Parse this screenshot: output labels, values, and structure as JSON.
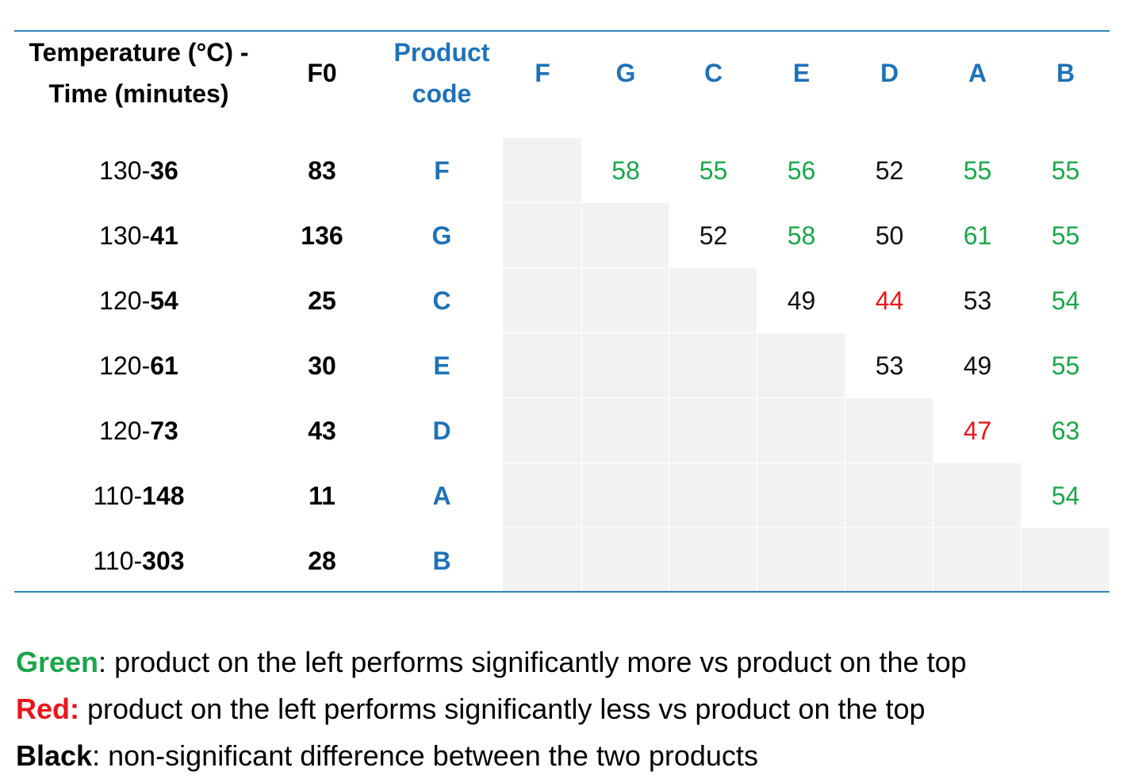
{
  "chart_data": {
    "type": "table",
    "columns": {
      "temp_time": "Temperature (°C) - Time (minutes)",
      "temp_time_line1": "Temperature (°C) -",
      "temp_time_line2": "Time (minutes)",
      "f0": "F0",
      "product_code_line1": "Product",
      "product_code_line2": "code"
    },
    "products": [
      "F",
      "G",
      "C",
      "E",
      "D",
      "A",
      "B"
    ],
    "rows": [
      {
        "temp": "130-",
        "time": "36",
        "f0": "83",
        "code": "F"
      },
      {
        "temp": "130-",
        "time": "41",
        "f0": "136",
        "code": "G"
      },
      {
        "temp": "120-",
        "time": "54",
        "f0": "25",
        "code": "C"
      },
      {
        "temp": "120-",
        "time": "61",
        "f0": "30",
        "code": "E"
      },
      {
        "temp": "120-",
        "time": "73",
        "f0": "43",
        "code": "D"
      },
      {
        "temp": "110-",
        "time": "148",
        "f0": "11",
        "code": "A"
      },
      {
        "temp": "110-",
        "time": "303",
        "f0": "28",
        "code": "B"
      }
    ],
    "matrix": [
      [
        null,
        58,
        55,
        56,
        52,
        55,
        55
      ],
      [
        null,
        null,
        52,
        58,
        50,
        61,
        55
      ],
      [
        null,
        null,
        null,
        49,
        44,
        53,
        54
      ],
      [
        null,
        null,
        null,
        null,
        53,
        49,
        55
      ],
      [
        null,
        null,
        null,
        null,
        null,
        47,
        63
      ],
      [
        null,
        null,
        null,
        null,
        null,
        null,
        54
      ],
      [
        null,
        null,
        null,
        null,
        null,
        null,
        null
      ]
    ],
    "significance": [
      [
        null,
        "more",
        "more",
        "more",
        "ns",
        "more",
        "more"
      ],
      [
        null,
        null,
        "ns",
        "more",
        "ns",
        "more",
        "more"
      ],
      [
        null,
        null,
        null,
        "ns",
        "less",
        "ns",
        "more"
      ],
      [
        null,
        null,
        null,
        null,
        "ns",
        "ns",
        "more"
      ],
      [
        null,
        null,
        null,
        null,
        null,
        "less",
        "more"
      ],
      [
        null,
        null,
        null,
        null,
        null,
        null,
        "more"
      ],
      [
        null,
        null,
        null,
        null,
        null,
        null,
        null
      ]
    ]
  },
  "legend": [
    {
      "key": "Green",
      "sep": ": ",
      "text": "product on the left performs significantly more vs product on the top",
      "color": "#1aa64a",
      "class": "g"
    },
    {
      "key": "Red:",
      "sep": " ",
      "text": "product on the left performs significantly less vs product on the top",
      "color": "#e8161c",
      "class": "r"
    },
    {
      "key": "Black",
      "sep": ": ",
      "text": "non-significant difference between the two products",
      "color": "#000000",
      "class": "k"
    }
  ],
  "colors": {
    "more": "#1aa64a",
    "less": "#e8161c",
    "ns": "#111111",
    "header_blue": "#1f72b8",
    "rule": "#2e86c1",
    "empty_cell": "#f2f2f2"
  }
}
